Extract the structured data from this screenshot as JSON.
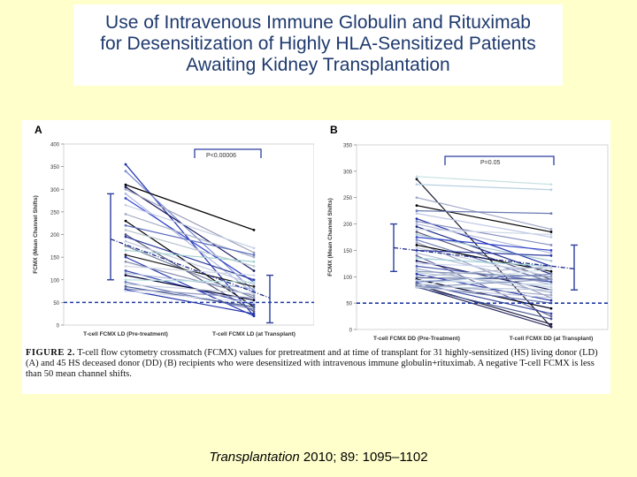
{
  "slide": {
    "title_lines": [
      "Use of Intravenous Immune Globulin and Rituximab",
      "for Desensitization of Highly HLA-Sensitized Patients",
      "Awaiting Kidney Transplantation"
    ],
    "citation_journal": "Transplantation",
    "citation_rest": " 2010; 89: 1095–1102"
  },
  "figure": {
    "caption_label": "FIGURE 2.",
    "caption_text": "  T-cell flow cytometry crossmatch (FCMX) values for pretreatment and at time of transplant for 31 highly-sensitized (HS) living donor (LD) (A) and 45 HS deceased donor (DD) (B) recipients who were desensitized with intravenous immune globulin+rituximab. A negative T-cell FCMX is less than 50 mean channel shifts."
  },
  "colors": {
    "title": "#1f3a6e",
    "bracket": "#2b3f9e",
    "threshold": "#1e3aa0",
    "background": "#ffffcc"
  },
  "chart_data": [
    {
      "type": "line",
      "panel": "A",
      "ylabel": "FCMX (Mean Channel Shifts)",
      "categories": [
        "T-cell FCMX LD (Pre-treatment)",
        "T-cell FCMX LD (at Transplant)"
      ],
      "ylim": [
        0,
        400
      ],
      "yticks": [
        0,
        50,
        100,
        150,
        200,
        250,
        300,
        350,
        400
      ],
      "threshold": 50,
      "p_label": "P<0.00006",
      "means": [
        190,
        60
      ],
      "sd": [
        [
          100,
          290
        ],
        [
          5,
          110
        ]
      ],
      "series": [
        {
          "values": [
            355,
            20
          ],
          "color": "#2233aa"
        },
        {
          "values": [
            340,
            75
          ],
          "color": "#7a8ad0"
        },
        {
          "values": [
            310,
            210
          ],
          "color": "#000000"
        },
        {
          "values": [
            305,
            120
          ],
          "color": "#1a1a5e"
        },
        {
          "values": [
            300,
            160
          ],
          "color": "#9aa0b8"
        },
        {
          "values": [
            290,
            70
          ],
          "color": "#b0b8e0"
        },
        {
          "values": [
            280,
            95
          ],
          "color": "#3344cc"
        },
        {
          "values": [
            265,
            170
          ],
          "color": "#c8d0e8"
        },
        {
          "values": [
            245,
            150
          ],
          "color": "#a8b0c8"
        },
        {
          "values": [
            230,
            40
          ],
          "color": "#000000"
        },
        {
          "values": [
            220,
            155
          ],
          "color": "#6070c0"
        },
        {
          "values": [
            210,
            130
          ],
          "color": "#b8c8d0"
        },
        {
          "values": [
            200,
            30
          ],
          "color": "#555577"
        },
        {
          "values": [
            195,
            100
          ],
          "color": "#2a3a9a"
        },
        {
          "values": [
            185,
            90
          ],
          "color": "#c0c8e0"
        },
        {
          "values": [
            175,
            60
          ],
          "color": "#7080a0"
        },
        {
          "values": [
            165,
            140
          ],
          "color": "#a0d0d0"
        },
        {
          "values": [
            155,
            85
          ],
          "color": "#1a1a1a"
        },
        {
          "values": [
            150,
            20
          ],
          "color": "#2233aa"
        },
        {
          "values": [
            140,
            65
          ],
          "color": "#8890b0"
        },
        {
          "values": [
            130,
            110
          ],
          "color": "#d0d8e8"
        },
        {
          "values": [
            120,
            45
          ],
          "color": "#3a4ab0"
        },
        {
          "values": [
            115,
            80
          ],
          "color": "#aab8d8"
        },
        {
          "values": [
            110,
            55
          ],
          "color": "#000033"
        },
        {
          "values": [
            100,
            95
          ],
          "color": "#b8e0e0"
        },
        {
          "values": [
            95,
            35
          ],
          "color": "#6a7ab8"
        },
        {
          "values": [
            90,
            70
          ],
          "color": "#c8d0e0"
        },
        {
          "values": [
            85,
            40
          ],
          "color": "#4a5a90"
        },
        {
          "values": [
            80,
            60
          ],
          "color": "#9098c0"
        },
        {
          "values": [
            78,
            25
          ],
          "color": "#2233aa"
        },
        {
          "values": [
            75,
            50
          ],
          "color": "#d8e0f0"
        }
      ]
    },
    {
      "type": "line",
      "panel": "B",
      "ylabel": "FCMX (Mean Channel Shifts)",
      "categories": [
        "T-cell FCMX DD (Pre-Treatment)",
        "T-cell FCMX DD (at Transplant)"
      ],
      "ylim": [
        0,
        350
      ],
      "yticks": [
        0,
        50,
        100,
        150,
        200,
        250,
        300,
        350
      ],
      "threshold": 50,
      "p_label": "P=0.05",
      "means": [
        155,
        115
      ],
      "sd": [
        [
          110,
          200
        ],
        [
          75,
          160
        ]
      ],
      "series": [
        {
          "values": [
            290,
            275
          ],
          "color": "#c8e0e0"
        },
        {
          "values": [
            285,
            5
          ],
          "color": "#1a1a2e"
        },
        {
          "values": [
            275,
            265
          ],
          "color": "#b8d0e0"
        },
        {
          "values": [
            250,
            190
          ],
          "color": "#a0a8c8"
        },
        {
          "values": [
            235,
            185
          ],
          "color": "#000000"
        },
        {
          "values": [
            225,
            220
          ],
          "color": "#6a7ab0"
        },
        {
          "values": [
            220,
            175
          ],
          "color": "#c0c8e8"
        },
        {
          "values": [
            210,
            120
          ],
          "color": "#2233aa"
        },
        {
          "values": [
            205,
            160
          ],
          "color": "#8890c0"
        },
        {
          "values": [
            200,
            145
          ],
          "color": "#b0b8d8"
        },
        {
          "values": [
            195,
            105
          ],
          "color": "#1a2a80"
        },
        {
          "values": [
            190,
            180
          ],
          "color": "#d0d8e8"
        },
        {
          "values": [
            185,
            95
          ],
          "color": "#555577"
        },
        {
          "values": [
            180,
            130
          ],
          "color": "#a8c8d0"
        },
        {
          "values": [
            175,
            150
          ],
          "color": "#3344cc"
        },
        {
          "values": [
            170,
            90
          ],
          "color": "#7080b8"
        },
        {
          "values": [
            165,
            60
          ],
          "color": "#9aa0c0"
        },
        {
          "values": [
            160,
            110
          ],
          "color": "#000000"
        },
        {
          "values": [
            155,
            100
          ],
          "color": "#c8d0e0"
        },
        {
          "values": [
            150,
            140
          ],
          "color": "#2a3aa0"
        },
        {
          "values": [
            145,
            85
          ],
          "color": "#b8c0d8"
        },
        {
          "values": [
            140,
            25
          ],
          "color": "#6a6aa0"
        },
        {
          "values": [
            135,
            120
          ],
          "color": "#a0d0d8"
        },
        {
          "values": [
            130,
            75
          ],
          "color": "#1a1a5e"
        },
        {
          "values": [
            125,
            115
          ],
          "color": "#d0d8f0"
        },
        {
          "values": [
            120,
            90
          ],
          "color": "#4a5ab0"
        },
        {
          "values": [
            115,
            70
          ],
          "color": "#a8b0d0"
        },
        {
          "values": [
            110,
            100
          ],
          "color": "#8898b8"
        },
        {
          "values": [
            108,
            80
          ],
          "color": "#c0d0e0"
        },
        {
          "values": [
            105,
            55
          ],
          "color": "#2233aa"
        },
        {
          "values": [
            100,
            120
          ],
          "color": "#b0b8d0"
        },
        {
          "values": [
            98,
            95
          ],
          "color": "#5a6a98"
        },
        {
          "values": [
            95,
            40
          ],
          "color": "#000022"
        },
        {
          "values": [
            93,
            85
          ],
          "color": "#c8d8e8"
        },
        {
          "values": [
            90,
            105
          ],
          "color": "#7a88c0"
        },
        {
          "values": [
            88,
            30
          ],
          "color": "#3a4aa0"
        },
        {
          "values": [
            86,
            65
          ],
          "color": "#a0a8c8"
        },
        {
          "values": [
            85,
            10
          ],
          "color": "#1a1a3e"
        },
        {
          "values": [
            84,
            115
          ],
          "color": "#d0e0e8"
        },
        {
          "values": [
            83,
            50
          ],
          "color": "#6a78b0"
        },
        {
          "values": [
            82,
            75
          ],
          "color": "#b8c8d8"
        },
        {
          "values": [
            81,
            5
          ],
          "color": "#2a2a60"
        },
        {
          "values": [
            80,
            95
          ],
          "color": "#8a98c0"
        },
        {
          "values": [
            80,
            20
          ],
          "color": "#4a5a90"
        },
        {
          "values": [
            80,
            60
          ],
          "color": "#c0c8e0"
        }
      ]
    }
  ]
}
